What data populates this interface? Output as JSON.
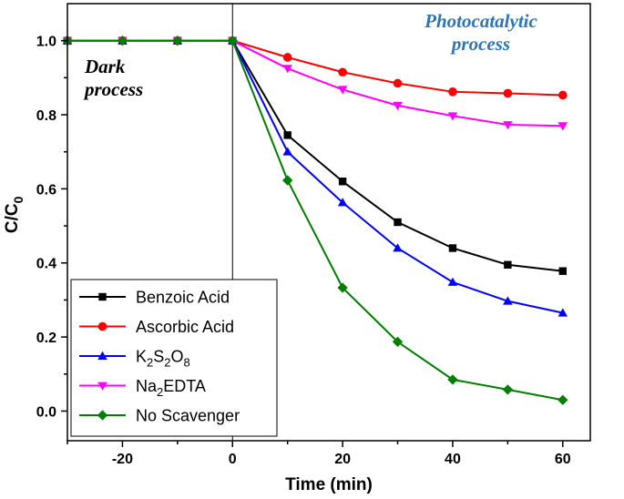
{
  "chart_data": {
    "type": "line",
    "title": "",
    "xlabel": "Time (min)",
    "ylabel": "C/C₀",
    "ylabel_main": "C/C",
    "ylabel_sub": "0",
    "xlim": [
      -30,
      65
    ],
    "ylim": [
      -0.08,
      1.1
    ],
    "x": [
      -30,
      -20,
      -10,
      0,
      10,
      20,
      30,
      40,
      50,
      60
    ],
    "x_ticks": [
      -20,
      0,
      20,
      40,
      60
    ],
    "x_tick_labels": [
      "-20",
      "0",
      "20",
      "40",
      "60"
    ],
    "y_ticks": [
      0.0,
      0.2,
      0.4,
      0.6,
      0.8,
      1.0
    ],
    "y_tick_labels": [
      "0.0",
      "0.2",
      "0.4",
      "0.6",
      "0.8",
      "1.0"
    ],
    "divider_x": 0,
    "series": [
      {
        "name": "Benzoic Acid",
        "label_parts": [
          {
            "t": "Benzoic Acid",
            "sub": false
          }
        ],
        "color": "#000000",
        "marker": "square",
        "values": [
          1.0,
          1.0,
          1.0,
          1.0,
          0.745,
          0.62,
          0.51,
          0.44,
          0.395,
          0.378
        ]
      },
      {
        "name": "Ascorbic Acid",
        "label_parts": [
          {
            "t": "Ascorbic Acid",
            "sub": false
          }
        ],
        "color": "#ff0000",
        "marker": "circle",
        "values": [
          1.0,
          1.0,
          1.0,
          1.0,
          0.955,
          0.915,
          0.885,
          0.862,
          0.858,
          0.853
        ]
      },
      {
        "name": "K2S2O8",
        "label_parts": [
          {
            "t": "K",
            "sub": false
          },
          {
            "t": "2",
            "sub": true
          },
          {
            "t": "S",
            "sub": false
          },
          {
            "t": "2",
            "sub": true
          },
          {
            "t": "O",
            "sub": false
          },
          {
            "t": "8",
            "sub": true
          }
        ],
        "color": "#0000ff",
        "marker": "triangle-up",
        "values": [
          1.0,
          1.0,
          1.0,
          1.0,
          0.7,
          0.563,
          0.44,
          0.348,
          0.297,
          0.265
        ]
      },
      {
        "name": "Na2EDTA",
        "label_parts": [
          {
            "t": "Na",
            "sub": false
          },
          {
            "t": "2",
            "sub": true
          },
          {
            "t": "EDTA",
            "sub": false
          }
        ],
        "color": "#ff00ff",
        "marker": "triangle-down",
        "values": [
          1.0,
          1.0,
          1.0,
          1.0,
          0.925,
          0.868,
          0.825,
          0.797,
          0.773,
          0.77
        ]
      },
      {
        "name": "No Scavenger",
        "label_parts": [
          {
            "t": "No Scavenger",
            "sub": false
          }
        ],
        "color": "#008000",
        "marker": "diamond",
        "values": [
          1.0,
          1.0,
          1.0,
          1.0,
          0.623,
          0.333,
          0.187,
          0.085,
          0.058,
          0.03
        ]
      }
    ],
    "annotations": [
      {
        "lines": [
          "Dark",
          "process"
        ],
        "color": "#000000"
      },
      {
        "lines": [
          "Photocatalytic",
          "process"
        ],
        "color": "#2e75b6"
      }
    ],
    "legend_position": "bottom-left"
  }
}
